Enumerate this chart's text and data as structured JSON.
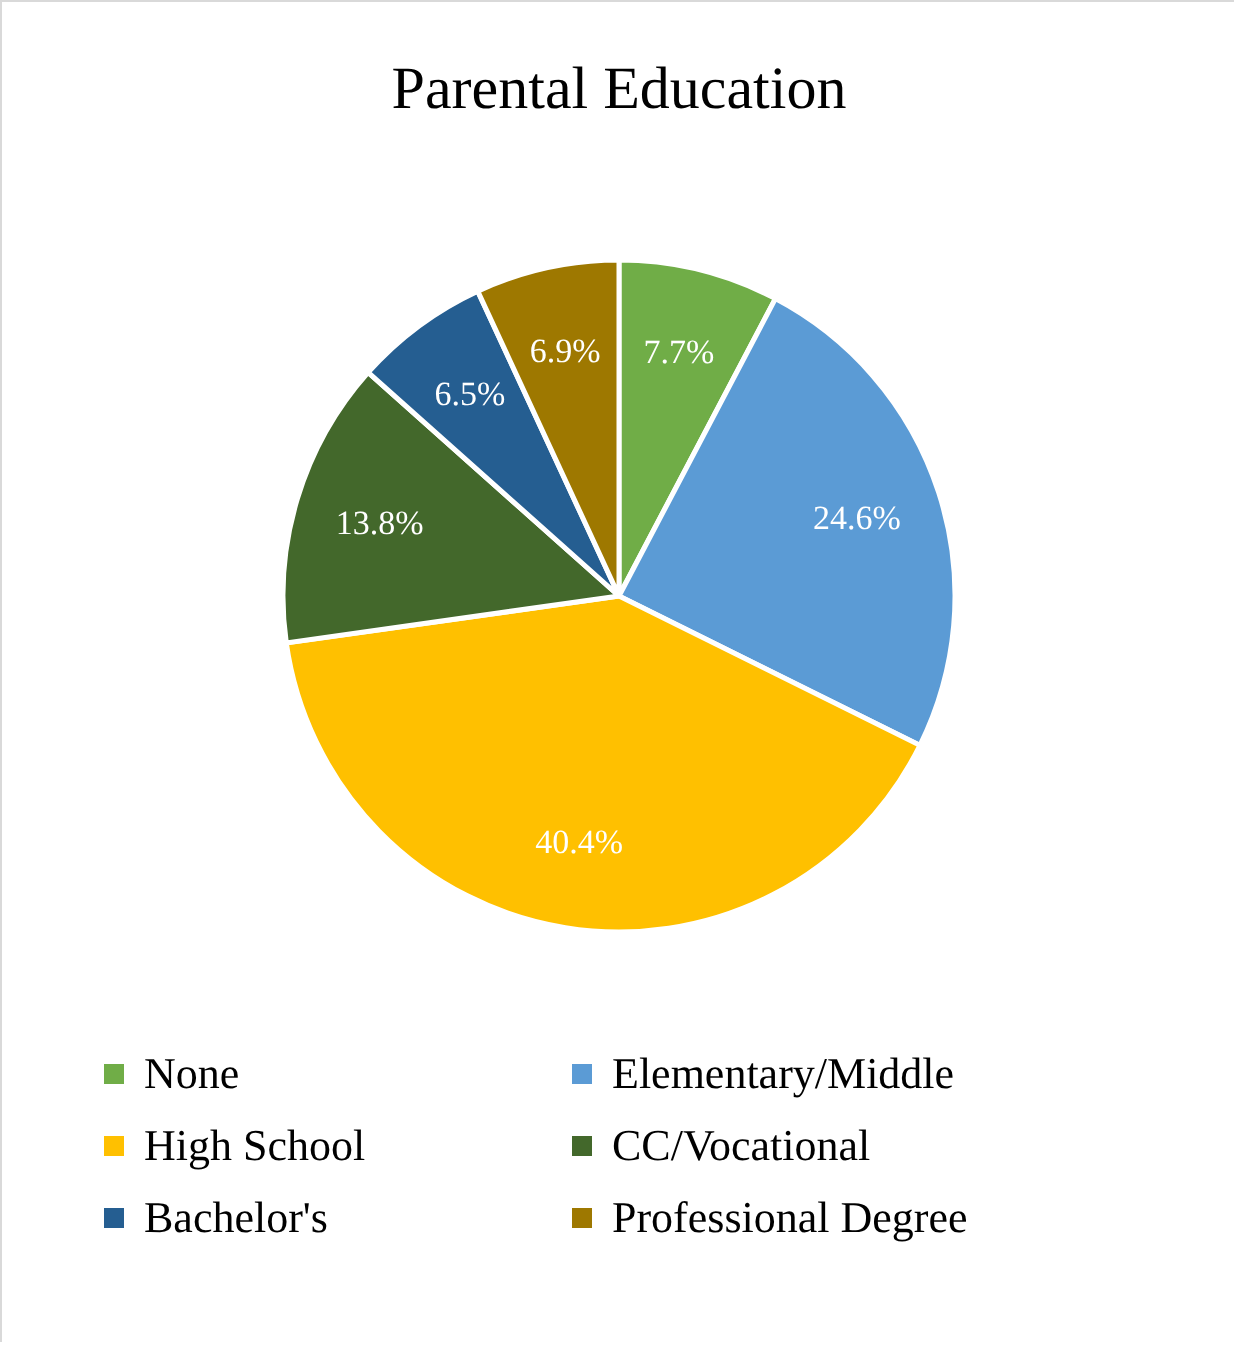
{
  "chart_data": {
    "type": "pie",
    "title": "Parental Education",
    "categories": [
      "None",
      "Elementary/Middle",
      "High School",
      "CC/Vocational",
      "Bachelor's",
      "Professional Degree"
    ],
    "values": [
      7.7,
      24.6,
      40.4,
      13.8,
      6.5,
      6.9
    ],
    "value_labels": [
      "7.7%",
      "24.6%",
      "40.4%",
      "13.8%",
      "6.5%",
      "6.9%"
    ],
    "colors": [
      "#70ad47",
      "#5b9bd5",
      "#ffc000",
      "#43682b",
      "#255e91",
      "#9e7800"
    ],
    "legend": "bottom"
  }
}
